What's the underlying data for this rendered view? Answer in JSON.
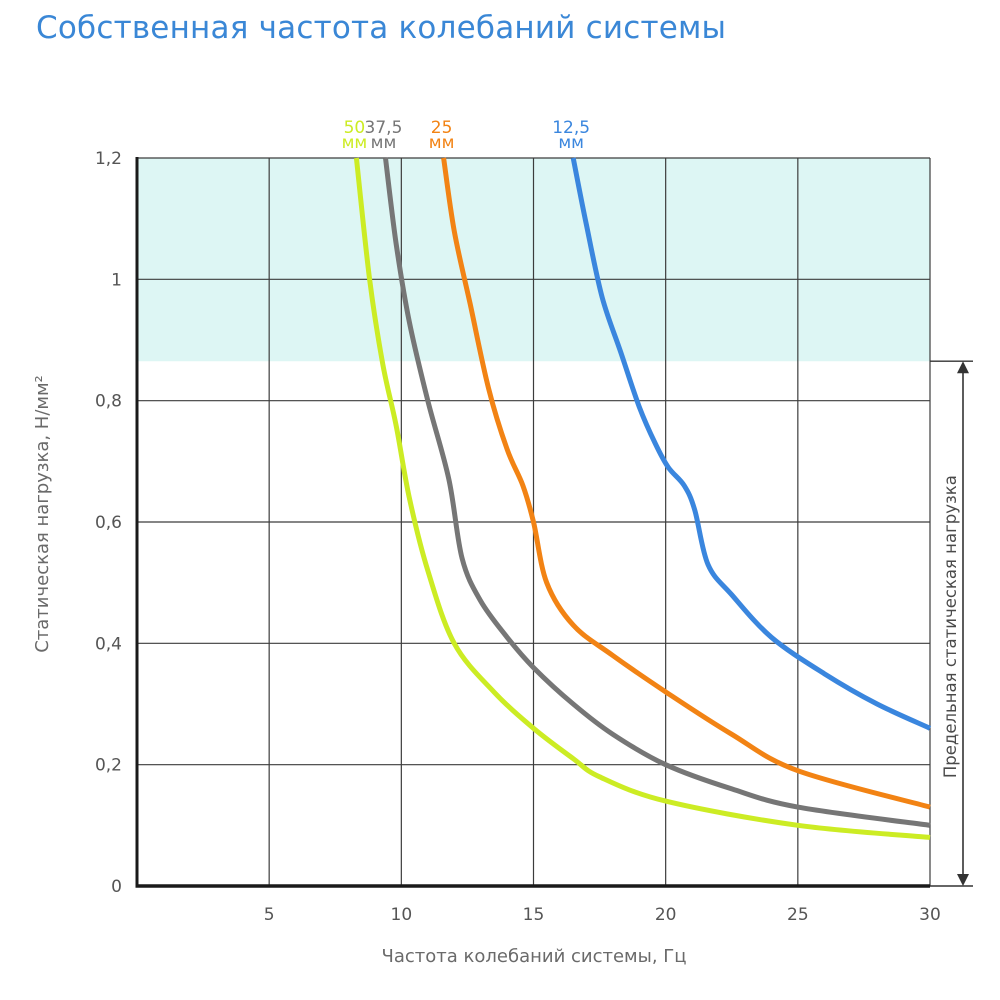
{
  "title": "Собственная частота колебаний системы",
  "chart_data": {
    "type": "line",
    "title": "Собственная частота колебаний системы",
    "xlabel": "Частота колебаний системы, Гц",
    "ylabel": "Статическая нагрузка, Н/мм²",
    "xlim": [
      0,
      30
    ],
    "ylim": [
      0,
      1.2
    ],
    "x_ticks": [
      "5",
      "10",
      "15",
      "20",
      "25",
      "30"
    ],
    "y_ticks": [
      "0",
      "0,2",
      "0,4",
      "0,6",
      "0,8",
      "1",
      "1,2"
    ],
    "x_tick_values": [
      5,
      10,
      15,
      20,
      25,
      30
    ],
    "y_tick_values": [
      0,
      0.2,
      0.4,
      0.6,
      0.8,
      1.0,
      1.2
    ],
    "grid": true,
    "shaded_region": {
      "y_from": 0.865,
      "y_to": 1.2,
      "color": "#ddf6f4"
    },
    "annotation": {
      "text": "Предельная статическая нагрузка",
      "y_from": 0,
      "y_to": 0.865
    },
    "series": [
      {
        "name": "50",
        "unit": "мм",
        "color": "#ccec24",
        "x": [
          8.3,
          8.8,
          9.3,
          9.8,
          10.3,
          11.0,
          12.0,
          13.5,
          15.0,
          16.5,
          17.5,
          20.0,
          25.0,
          30.0
        ],
        "y": [
          1.2,
          1.0,
          0.86,
          0.76,
          0.64,
          0.52,
          0.4,
          0.32,
          0.26,
          0.21,
          0.18,
          0.14,
          0.1,
          0.08
        ]
      },
      {
        "name": "37,5",
        "unit": "мм",
        "color": "#767676",
        "x": [
          9.4,
          9.8,
          10.3,
          11.0,
          11.8,
          12.3,
          13.0,
          14.0,
          15.0,
          16.5,
          18.0,
          20.0,
          22.5,
          25.0,
          30.0
        ],
        "y": [
          1.2,
          1.06,
          0.93,
          0.8,
          0.67,
          0.54,
          0.47,
          0.41,
          0.36,
          0.3,
          0.25,
          0.2,
          0.16,
          0.13,
          0.1
        ]
      },
      {
        "name": "25",
        "unit": "мм",
        "color": "#f28314",
        "x": [
          11.6,
          12.0,
          12.6,
          13.3,
          14.0,
          14.6,
          15.0,
          15.5,
          16.5,
          18.0,
          20.0,
          22.5,
          25.0,
          30.0
        ],
        "y": [
          1.2,
          1.08,
          0.96,
          0.82,
          0.72,
          0.66,
          0.6,
          0.5,
          0.43,
          0.38,
          0.32,
          0.25,
          0.19,
          0.13
        ]
      },
      {
        "name": "12,5",
        "unit": "мм",
        "color": "#3a86de",
        "x": [
          16.5,
          17.0,
          17.6,
          18.3,
          19.0,
          19.6,
          20.1,
          20.7,
          21.1,
          21.6,
          22.5,
          24.0,
          26.0,
          28.0,
          30.0
        ],
        "y": [
          1.2,
          1.09,
          0.97,
          0.88,
          0.79,
          0.73,
          0.69,
          0.66,
          0.62,
          0.53,
          0.48,
          0.41,
          0.35,
          0.3,
          0.26
        ]
      }
    ]
  }
}
